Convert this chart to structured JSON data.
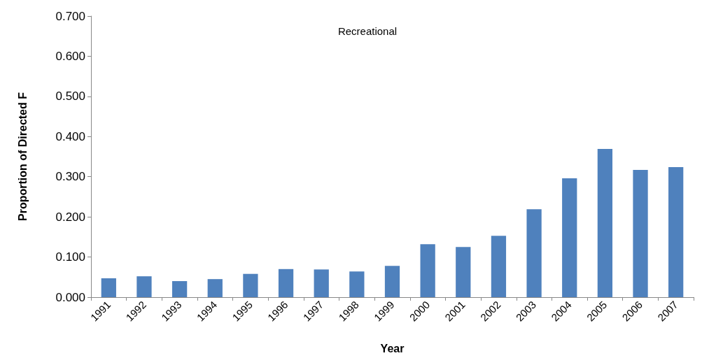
{
  "chart_data": {
    "type": "bar",
    "title": "Recreational",
    "xlabel": "Year",
    "ylabel": "Proportion of Directed F",
    "categories": [
      "1991",
      "1992",
      "1993",
      "1994",
      "1995",
      "1996",
      "1997",
      "1998",
      "1999",
      "2000",
      "2001",
      "2002",
      "2003",
      "2004",
      "2005",
      "2006",
      "2007"
    ],
    "values": [
      0.047,
      0.052,
      0.04,
      0.045,
      0.058,
      0.07,
      0.069,
      0.064,
      0.078,
      0.132,
      0.125,
      0.153,
      0.219,
      0.296,
      0.369,
      0.317,
      0.324
    ],
    "color": "#4f81bd",
    "ylim": [
      0,
      0.7
    ],
    "yticks": [
      {
        "value": 0,
        "label": "0.000"
      },
      {
        "value": 0.1,
        "label": "0.100"
      },
      {
        "value": 0.2,
        "label": "0.200"
      },
      {
        "value": 0.3,
        "label": "0.300"
      },
      {
        "value": 0.4,
        "label": "0.400"
      },
      {
        "value": 0.5,
        "label": "0.500"
      },
      {
        "value": 0.6,
        "label": "0.600"
      },
      {
        "value": 0.7,
        "label": "0.700"
      }
    ],
    "grid": false
  }
}
